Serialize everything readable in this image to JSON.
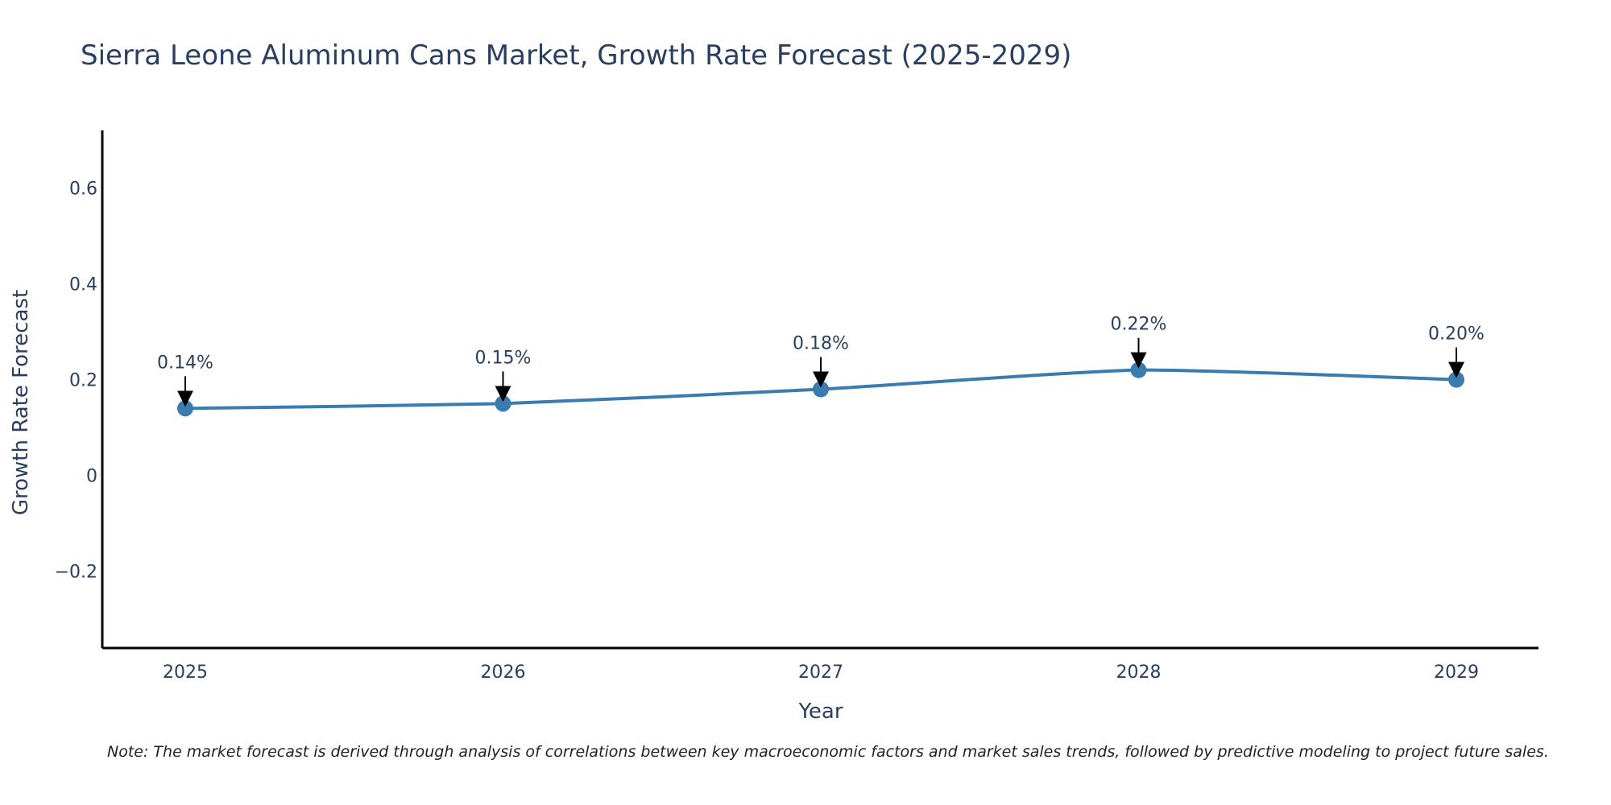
{
  "chart_data": {
    "type": "line",
    "title": "Sierra Leone Aluminum Cans Market, Growth Rate Forecast (2025-2029)",
    "xlabel": "Year",
    "ylabel": "Growth Rate Forecast",
    "categories": [
      "2025",
      "2026",
      "2027",
      "2028",
      "2029"
    ],
    "series": [
      {
        "name": "Growth Rate Forecast",
        "values": [
          0.14,
          0.15,
          0.18,
          0.22,
          0.2
        ]
      }
    ],
    "data_labels": [
      "0.14%",
      "0.15%",
      "0.18%",
      "0.22%",
      "0.20%"
    ],
    "y_ticks": [
      {
        "value": 0.6,
        "label": "0.6"
      },
      {
        "value": 0.4,
        "label": "0.4"
      },
      {
        "value": 0.2,
        "label": "0.2"
      },
      {
        "value": 0,
        "label": "0"
      },
      {
        "value": -0.2,
        "label": "−0.2"
      }
    ],
    "ylim": [
      -0.36,
      0.72
    ],
    "grid": false,
    "line_color": "#3a7cb0",
    "axis_color": "#000000",
    "arrow_color": "#000000",
    "note": "Note: The market forecast is derived through analysis of correlations between key macroeconomic factors and market sales trends, followed by predictive modeling to project future sales."
  }
}
